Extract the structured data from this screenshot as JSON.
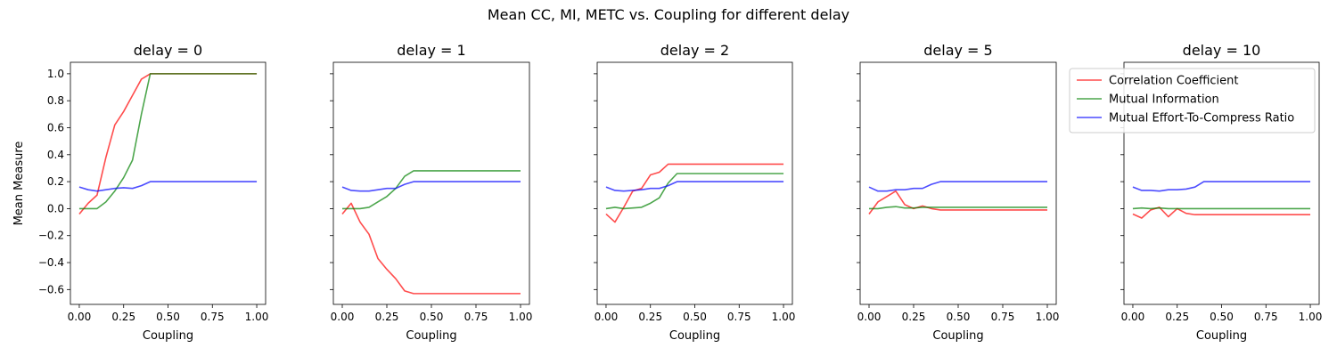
{
  "figure": {
    "suptitle": "Mean CC, MI, METC vs. Coupling for different delay"
  },
  "chart_data": [
    {
      "type": "line",
      "title": "delay = 0",
      "xlabel": "Coupling",
      "ylabel": "Mean Measure",
      "xlim": [
        -0.05,
        1.05
      ],
      "ylim": [
        -0.71,
        1.085
      ],
      "x": [
        0.0,
        0.05,
        0.1,
        0.15,
        0.2,
        0.25,
        0.3,
        0.35,
        0.4,
        0.45,
        0.5,
        0.55,
        0.6,
        0.65,
        0.7,
        0.75,
        0.8,
        0.85,
        0.9,
        0.95,
        1.0
      ],
      "series": [
        {
          "name": "Correlation Coefficient",
          "color": "#ff0000",
          "values": [
            -0.04,
            0.04,
            0.1,
            0.38,
            0.62,
            0.72,
            0.84,
            0.96,
            1.0,
            1.0,
            1.0,
            1.0,
            1.0,
            1.0,
            1.0,
            1.0,
            1.0,
            1.0,
            1.0,
            1.0,
            1.0
          ]
        },
        {
          "name": "Mutual Information",
          "color": "#008000",
          "values": [
            0.0,
            0.0,
            0.0,
            0.05,
            0.13,
            0.23,
            0.36,
            0.7,
            1.0,
            1.0,
            1.0,
            1.0,
            1.0,
            1.0,
            1.0,
            1.0,
            1.0,
            1.0,
            1.0,
            1.0,
            1.0
          ]
        },
        {
          "name": "Mutual Effort-To-Compress Ratio",
          "color": "#0000ff",
          "values": [
            0.16,
            0.14,
            0.13,
            0.14,
            0.15,
            0.155,
            0.15,
            0.17,
            0.2,
            0.2,
            0.2,
            0.2,
            0.2,
            0.2,
            0.2,
            0.2,
            0.2,
            0.2,
            0.2,
            0.2,
            0.2
          ]
        }
      ]
    },
    {
      "type": "line",
      "title": "delay = 1",
      "xlabel": "Coupling",
      "ylabel": "",
      "xlim": [
        -0.05,
        1.05
      ],
      "ylim": [
        -0.71,
        1.085
      ],
      "x": [
        0.0,
        0.05,
        0.1,
        0.15,
        0.2,
        0.25,
        0.3,
        0.35,
        0.4,
        0.45,
        0.5,
        0.55,
        0.6,
        0.65,
        0.7,
        0.75,
        0.8,
        0.85,
        0.9,
        0.95,
        1.0
      ],
      "series": [
        {
          "name": "Correlation Coefficient",
          "color": "#ff0000",
          "values": [
            -0.04,
            0.04,
            -0.1,
            -0.19,
            -0.37,
            -0.45,
            -0.52,
            -0.61,
            -0.63,
            -0.63,
            -0.63,
            -0.63,
            -0.63,
            -0.63,
            -0.63,
            -0.63,
            -0.63,
            -0.63,
            -0.63,
            -0.63,
            -0.63
          ]
        },
        {
          "name": "Mutual Information",
          "color": "#008000",
          "values": [
            0.0,
            0.0,
            0.0,
            0.01,
            0.05,
            0.09,
            0.15,
            0.24,
            0.28,
            0.28,
            0.28,
            0.28,
            0.28,
            0.28,
            0.28,
            0.28,
            0.28,
            0.28,
            0.28,
            0.28,
            0.28
          ]
        },
        {
          "name": "Mutual Effort-To-Compress Ratio",
          "color": "#0000ff",
          "values": [
            0.16,
            0.135,
            0.13,
            0.13,
            0.14,
            0.15,
            0.15,
            0.18,
            0.2,
            0.2,
            0.2,
            0.2,
            0.2,
            0.2,
            0.2,
            0.2,
            0.2,
            0.2,
            0.2,
            0.2,
            0.2
          ]
        }
      ]
    },
    {
      "type": "line",
      "title": "delay = 2",
      "xlabel": "Coupling",
      "ylabel": "",
      "xlim": [
        -0.05,
        1.05
      ],
      "ylim": [
        -0.71,
        1.085
      ],
      "x": [
        0.0,
        0.05,
        0.1,
        0.15,
        0.2,
        0.25,
        0.3,
        0.35,
        0.4,
        0.45,
        0.5,
        0.55,
        0.6,
        0.65,
        0.7,
        0.75,
        0.8,
        0.85,
        0.9,
        0.95,
        1.0
      ],
      "series": [
        {
          "name": "Correlation Coefficient",
          "color": "#ff0000",
          "values": [
            -0.04,
            -0.1,
            0.01,
            0.13,
            0.15,
            0.25,
            0.27,
            0.33,
            0.33,
            0.33,
            0.33,
            0.33,
            0.33,
            0.33,
            0.33,
            0.33,
            0.33,
            0.33,
            0.33,
            0.33,
            0.33
          ]
        },
        {
          "name": "Mutual Information",
          "color": "#008000",
          "values": [
            0.0,
            0.01,
            0.0,
            0.005,
            0.01,
            0.04,
            0.08,
            0.19,
            0.26,
            0.26,
            0.26,
            0.26,
            0.26,
            0.26,
            0.26,
            0.26,
            0.26,
            0.26,
            0.26,
            0.26,
            0.26
          ]
        },
        {
          "name": "Mutual Effort-To-Compress Ratio",
          "color": "#0000ff",
          "values": [
            0.16,
            0.135,
            0.13,
            0.135,
            0.14,
            0.15,
            0.15,
            0.17,
            0.2,
            0.2,
            0.2,
            0.2,
            0.2,
            0.2,
            0.2,
            0.2,
            0.2,
            0.2,
            0.2,
            0.2,
            0.2
          ]
        }
      ]
    },
    {
      "type": "line",
      "title": "delay = 5",
      "xlabel": "Coupling",
      "ylabel": "",
      "xlim": [
        -0.05,
        1.05
      ],
      "ylim": [
        -0.71,
        1.085
      ],
      "x": [
        0.0,
        0.05,
        0.1,
        0.15,
        0.2,
        0.25,
        0.3,
        0.35,
        0.4,
        0.45,
        0.5,
        0.55,
        0.6,
        0.65,
        0.7,
        0.75,
        0.8,
        0.85,
        0.9,
        0.95,
        1.0
      ],
      "series": [
        {
          "name": "Correlation Coefficient",
          "color": "#ff0000",
          "values": [
            -0.04,
            0.05,
            0.09,
            0.13,
            0.03,
            0.0,
            0.02,
            0.0,
            -0.01,
            -0.01,
            -0.01,
            -0.01,
            -0.01,
            -0.01,
            -0.01,
            -0.01,
            -0.01,
            -0.01,
            -0.01,
            -0.01,
            -0.01
          ]
        },
        {
          "name": "Mutual Information",
          "color": "#008000",
          "values": [
            0.0,
            0.0,
            0.01,
            0.015,
            0.005,
            0.005,
            0.01,
            0.01,
            0.01,
            0.01,
            0.01,
            0.01,
            0.01,
            0.01,
            0.01,
            0.01,
            0.01,
            0.01,
            0.01,
            0.01,
            0.01
          ]
        },
        {
          "name": "Mutual Effort-To-Compress Ratio",
          "color": "#0000ff",
          "values": [
            0.16,
            0.13,
            0.13,
            0.14,
            0.14,
            0.15,
            0.15,
            0.18,
            0.2,
            0.2,
            0.2,
            0.2,
            0.2,
            0.2,
            0.2,
            0.2,
            0.2,
            0.2,
            0.2,
            0.2,
            0.2
          ]
        }
      ]
    },
    {
      "type": "line",
      "title": "delay = 10",
      "xlabel": "Coupling",
      "ylabel": "",
      "xlim": [
        -0.05,
        1.05
      ],
      "ylim": [
        -0.71,
        1.085
      ],
      "x": [
        0.0,
        0.05,
        0.1,
        0.15,
        0.2,
        0.25,
        0.3,
        0.35,
        0.4,
        0.45,
        0.5,
        0.55,
        0.6,
        0.65,
        0.7,
        0.75,
        0.8,
        0.85,
        0.9,
        0.95,
        1.0
      ],
      "series": [
        {
          "name": "Correlation Coefficient",
          "color": "#ff0000",
          "values": [
            -0.04,
            -0.07,
            -0.01,
            0.01,
            -0.06,
            0.0,
            -0.035,
            -0.045,
            -0.045,
            -0.045,
            -0.045,
            -0.045,
            -0.045,
            -0.045,
            -0.045,
            -0.045,
            -0.045,
            -0.045,
            -0.045,
            -0.045,
            -0.045
          ]
        },
        {
          "name": "Mutual Information",
          "color": "#008000",
          "values": [
            0.0,
            0.005,
            0.0,
            0.005,
            0.0,
            0.0,
            0.0,
            0.0,
            0.0,
            0.0,
            0.0,
            0.0,
            0.0,
            0.0,
            0.0,
            0.0,
            0.0,
            0.0,
            0.0,
            0.0,
            0.0
          ]
        },
        {
          "name": "Mutual Effort-To-Compress Ratio",
          "color": "#0000ff",
          "values": [
            0.16,
            0.135,
            0.135,
            0.13,
            0.14,
            0.14,
            0.145,
            0.16,
            0.2,
            0.2,
            0.2,
            0.2,
            0.2,
            0.2,
            0.2,
            0.2,
            0.2,
            0.2,
            0.2,
            0.2,
            0.2
          ]
        }
      ]
    }
  ],
  "axes": {
    "x_ticks": [
      0.0,
      0.25,
      0.5,
      0.75,
      1.0
    ],
    "x_tick_labels": [
      "0.00",
      "0.25",
      "0.50",
      "0.75",
      "1.00"
    ],
    "y_ticks": [
      -0.6,
      -0.4,
      -0.2,
      0.0,
      0.2,
      0.4,
      0.6,
      0.8,
      1.0
    ],
    "y_tick_labels": [
      "−0.6",
      "−0.4",
      "−0.2",
      "0.0",
      "0.2",
      "0.4",
      "0.6",
      "0.8",
      "1.0"
    ],
    "y_labels_on_first_panel_only": true
  },
  "legend": {
    "placement": "upper-right of last panel",
    "entries": [
      {
        "label": "Correlation Coefficient",
        "color": "#ff0000"
      },
      {
        "label": "Mutual Information",
        "color": "#008000"
      },
      {
        "label": "Mutual Effort-To-Compress Ratio",
        "color": "#0000ff"
      }
    ]
  },
  "style": {
    "line_alpha": 0.7,
    "background": "#ffffff"
  }
}
